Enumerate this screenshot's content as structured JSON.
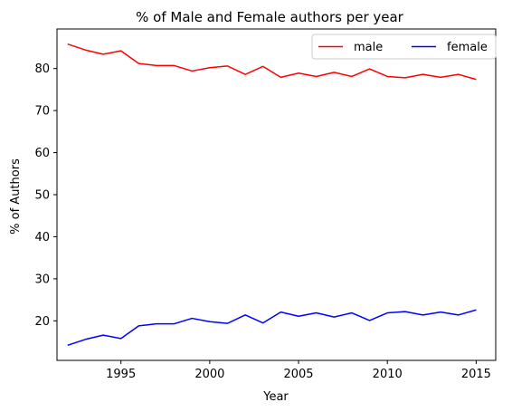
{
  "chart_data": {
    "type": "line",
    "title": "% of Male and Female authors per year",
    "xlabel": "Year",
    "ylabel": "% of Authors",
    "x": [
      1992,
      1993,
      1994,
      1995,
      1996,
      1997,
      1998,
      1999,
      2000,
      2001,
      2002,
      2003,
      2004,
      2005,
      2006,
      2007,
      2008,
      2009,
      2010,
      2011,
      2012,
      2013,
      2014,
      2015
    ],
    "series": [
      {
        "name": "male",
        "color": "#ff0000",
        "values": [
          85.8,
          84.4,
          83.4,
          84.2,
          81.2,
          80.7,
          80.7,
          79.4,
          80.2,
          80.6,
          78.6,
          80.5,
          77.9,
          78.9,
          78.1,
          79.1,
          78.1,
          79.9,
          78.1,
          77.8,
          78.6,
          77.9,
          78.6,
          77.4
        ]
      },
      {
        "name": "female",
        "color": "#0000ff",
        "values": [
          14.2,
          15.6,
          16.6,
          15.8,
          18.8,
          19.3,
          19.3,
          20.6,
          19.8,
          19.4,
          21.4,
          19.5,
          22.1,
          21.1,
          21.9,
          20.9,
          21.9,
          20.1,
          21.9,
          22.2,
          21.4,
          22.1,
          21.4,
          22.6
        ]
      }
    ],
    "xlim": [
      1991.4,
      2016.1
    ],
    "ylim": [
      10.6,
      89.4
    ],
    "xticks": [
      1995,
      2000,
      2005,
      2010,
      2015
    ],
    "yticks": [
      20,
      30,
      40,
      50,
      60,
      70,
      80
    ],
    "grid": false,
    "legend_position": "top-right",
    "legend_columns": 2
  }
}
